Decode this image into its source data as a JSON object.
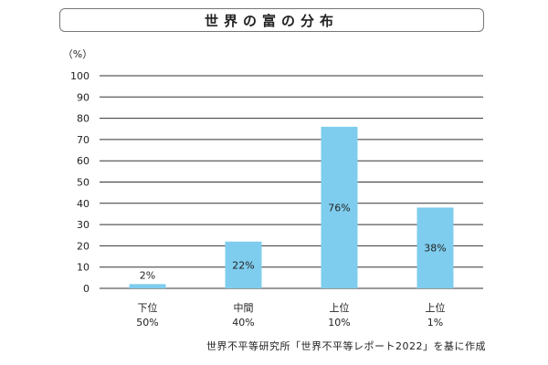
{
  "title": "世界の富の分布",
  "source": "世界不平等研究所「世界不平等レポート2022」を基に作成",
  "chart_data": {
    "type": "bar",
    "unit_label": "（%）",
    "categories": [
      {
        "line1": "下位",
        "line2": "50%"
      },
      {
        "line1": "中間",
        "line2": "40%"
      },
      {
        "line1": "上位",
        "line2": "10%"
      },
      {
        "line1": "上位",
        "line2": "1%"
      }
    ],
    "values": [
      2,
      22,
      76,
      38
    ],
    "data_labels": [
      "2%",
      "22%",
      "76%",
      "38%"
    ],
    "ylim": [
      0,
      100
    ],
    "yticks": [
      0,
      10,
      20,
      30,
      40,
      50,
      60,
      70,
      80,
      90,
      100
    ],
    "grid": true,
    "bar_color": "#7fcdee",
    "grid_color": "#333333"
  }
}
